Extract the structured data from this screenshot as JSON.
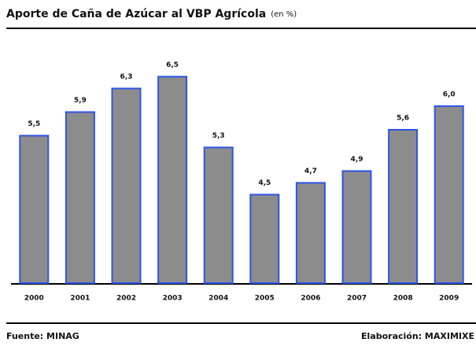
{
  "chart_data": {
    "type": "bar",
    "title": "Aporte de Caña de Azúcar al VBP Agrícola",
    "subtitle": "(en %)",
    "categories": [
      "2000",
      "2001",
      "2002",
      "2003",
      "2004",
      "2005",
      "2006",
      "2007",
      "2008",
      "2009"
    ],
    "values": [
      5.5,
      5.9,
      6.3,
      6.5,
      5.3,
      4.5,
      4.7,
      4.9,
      5.6,
      6.0
    ],
    "value_labels": [
      "5,5",
      "5,9",
      "6,3",
      "6,5",
      "5,3",
      "4,5",
      "4,7",
      "4,9",
      "5,6",
      "6,0"
    ],
    "color": "#8c8c8c",
    "edge_color": "#2b55e8",
    "ylim": [
      3,
      7
    ],
    "source": "Fuente: MINAG",
    "credit": "Elaboración: MAXIMIXE"
  }
}
